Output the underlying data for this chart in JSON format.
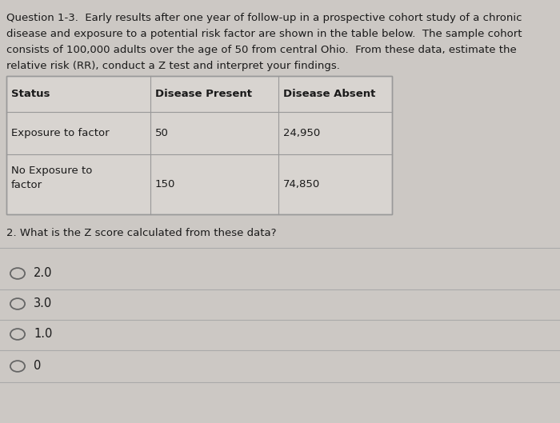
{
  "bg_color": "#ccc8c4",
  "table_bg": "#d8d4d0",
  "text_color": "#1a1a1a",
  "question_text_lines": [
    "Question 1-3.  Early results after one year of follow-up in a prospective cohort study of a chronic",
    "disease and exposure to a potential risk factor are shown in the table below.  The sample cohort",
    "consists of 100,000 adults over the age of 50 from central Ohio.  From these data, estimate the",
    "relative risk (RR), conduct a Z test and interpret your findings."
  ],
  "col_headers": [
    "Status",
    "Disease Present",
    "Disease Absent"
  ],
  "rows": [
    [
      "Exposure to factor",
      "50",
      "24,950"
    ],
    [
      "No Exposure to\nfactor",
      "150",
      "74,850"
    ]
  ],
  "question2_text": "2. What is the Z score calculated from these data?",
  "options": [
    "2.0",
    "3.0",
    "1.0",
    "0"
  ],
  "font_size_q": 9.5,
  "font_size_table": 9.5,
  "font_size_opt": 10.5,
  "line_color": "#aaaaaa",
  "border_color": "#999999"
}
